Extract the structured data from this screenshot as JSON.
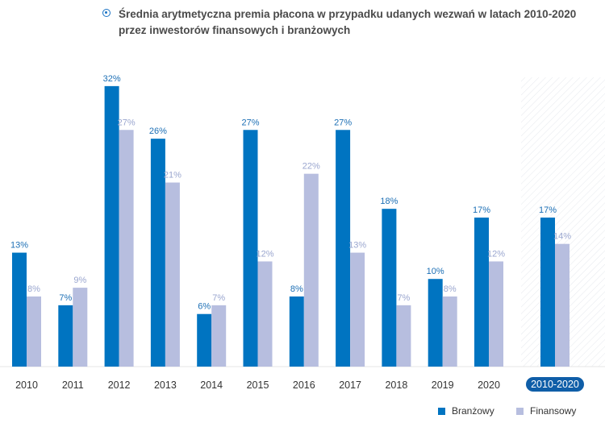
{
  "title": "Średnia arytmetyczna premia płacona w przypadku udanych wezwań w latach 2010-2020 przez inwestorów finansowych i branżowych",
  "legend": {
    "industry": "Branżowy",
    "financial": "Finansowy"
  },
  "colors": {
    "industry": "#0074c1",
    "financial": "#b7bedf",
    "industry_label": "#1c6fb5",
    "financial_label": "#9aa6cf",
    "axis_text": "#333333",
    "highlight_badge": "#0f5ea8"
  },
  "chart_data": {
    "type": "bar",
    "categories": [
      "2010",
      "2011",
      "2012",
      "2013",
      "2014",
      "2015",
      "2016",
      "2017",
      "2018",
      "2019",
      "2020",
      "2010-2020"
    ],
    "series": [
      {
        "name": "Branżowy",
        "values": [
          13,
          7,
          32,
          26,
          6,
          27,
          8,
          27,
          18,
          10,
          17,
          17
        ],
        "labels": [
          "13%",
          "7%",
          "32%",
          "26%",
          "6%",
          "27%",
          "8%",
          "27%",
          "18%",
          "10%",
          "17%",
          "17%"
        ]
      },
      {
        "name": "Finansowy",
        "values": [
          8,
          9,
          27,
          21,
          7,
          12,
          22,
          13,
          7,
          8,
          12,
          14
        ],
        "labels": [
          "8%",
          "9%",
          "27%",
          "21%",
          "7%",
          "12%",
          "22%",
          "13%",
          "7%",
          "8%",
          "12%",
          "14%"
        ]
      }
    ],
    "ylim": [
      0,
      33
    ],
    "grid": false,
    "highlighted_category": "2010-2020",
    "legend_position": "bottom-right"
  }
}
